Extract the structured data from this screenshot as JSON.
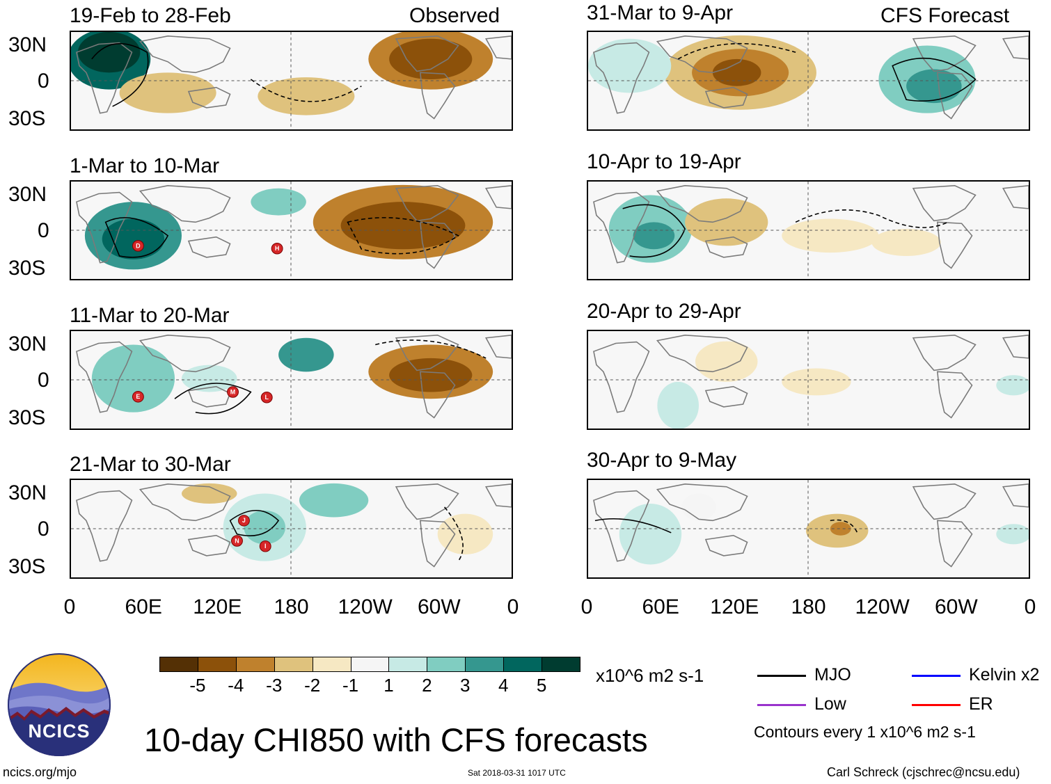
{
  "headers": {
    "left": "Observed",
    "right": "CFS Forecast"
  },
  "panels": {
    "left": [
      {
        "title": "19-Feb to 28-Feb"
      },
      {
        "title": "1-Mar to 10-Mar"
      },
      {
        "title": "11-Mar to 20-Mar"
      },
      {
        "title": "21-Mar to 30-Mar"
      }
    ],
    "right": [
      {
        "title": "31-Mar to 9-Apr"
      },
      {
        "title": "10-Apr to 19-Apr"
      },
      {
        "title": "20-Apr to 29-Apr"
      },
      {
        "title": "30-Apr to 9-May"
      }
    ]
  },
  "lat_labels": [
    "30N",
    "0",
    "30S"
  ],
  "lon_labels": [
    "0",
    "60E",
    "120E",
    "180",
    "120W",
    "60W",
    "0"
  ],
  "storm_markers": {
    "p2": [
      "D",
      "H"
    ],
    "p3": [
      "E",
      "M",
      "L"
    ],
    "p4": [
      "J",
      "N",
      "I"
    ]
  },
  "colorbar": {
    "colors": [
      "#543005",
      "#8c510a",
      "#bf812d",
      "#dfc27d",
      "#f6e8c3",
      "#f5f5f5",
      "#c7eae5",
      "#80cdc1",
      "#35978f",
      "#01665e",
      "#003c30"
    ],
    "labels": [
      "-5",
      "-4",
      "-3",
      "-2",
      "-1",
      "1",
      "2",
      "3",
      "4",
      "5"
    ],
    "units": "x10^6 m2 s-1"
  },
  "legend": {
    "mjo": {
      "label": "MJO",
      "color": "#000000"
    },
    "kelvin": {
      "label": "Kelvin x2",
      "color": "#0000ff"
    },
    "low": {
      "label": "Low",
      "color": "#9933cc"
    },
    "er": {
      "label": "ER",
      "color": "#ff0000"
    },
    "contours_note": "Contours every 1 x10^6 m2 s-1"
  },
  "main_title": "10-day CHI850 with CFS forecasts",
  "logo": {
    "text": "NCICS"
  },
  "footer": {
    "url": "ncics.org/mjo",
    "timestamp": "Sat 2018-03-31 1017 UTC",
    "author": "Carl Schreck (cjschrec@ncsu.edu)"
  }
}
